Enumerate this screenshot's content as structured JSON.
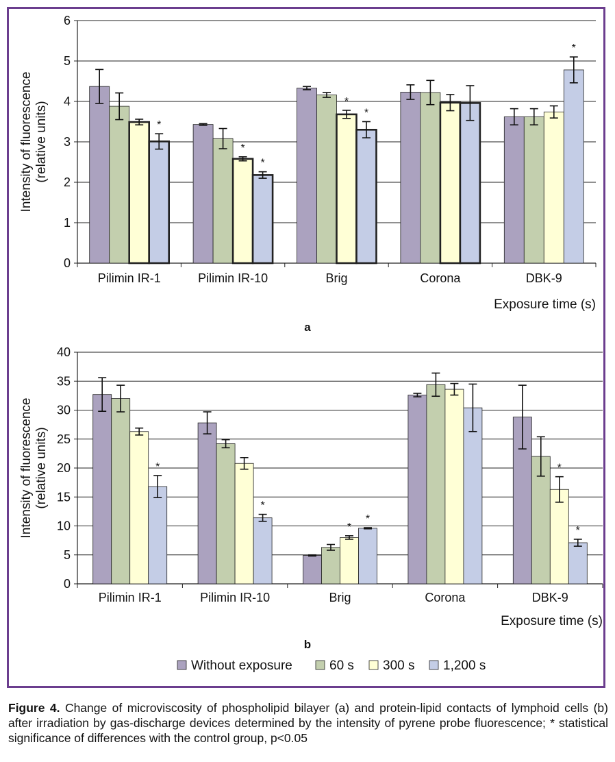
{
  "legend": [
    {
      "label": "Without exposure",
      "color": "#aba2bf"
    },
    {
      "label": "60 s",
      "color": "#c3cfae"
    },
    {
      "label": "300 s",
      "color": "#ffffd6"
    },
    {
      "label": "1,200 s",
      "color": "#c4cde6"
    }
  ],
  "caption": {
    "figure_label": "Figure 4.",
    "text": "Change of microviscosity of phospholipid bilayer (a) and protein-lipid contacts of lymphoid cells (b) after irradiation by gas-discharge devices determined by the intensity of pyrene probe fluorescence; * statistical significance of differences with the control group, p<0.05"
  },
  "chart_data": [
    {
      "type": "bar",
      "panel_label": "a",
      "ylabel_line1": "Intensity of fluorescence",
      "ylabel_line2": "(relative units)",
      "xlabel": "Exposure time (s)",
      "ylim": [
        0,
        6
      ],
      "yticks": [
        0,
        1,
        2,
        3,
        4,
        5,
        6
      ],
      "grid": true,
      "categories": [
        "Pilimin IR-1",
        "Pilimin IR-10",
        "Brig",
        "Corona",
        "DBK-9"
      ],
      "series": [
        {
          "name": "Without exposure",
          "values": [
            4.37,
            3.43,
            4.33,
            4.23,
            3.62
          ],
          "errors": [
            0.42,
            0.02,
            0.04,
            0.18,
            0.2
          ]
        },
        {
          "name": "60 s",
          "values": [
            3.88,
            3.08,
            4.16,
            4.22,
            3.62
          ],
          "errors": [
            0.33,
            0.25,
            0.06,
            0.3,
            0.2
          ]
        },
        {
          "name": "300 s",
          "values": [
            3.49,
            2.58,
            3.68,
            3.97,
            3.74
          ],
          "errors": [
            0.07,
            0.05,
            0.1,
            0.2,
            0.15
          ]
        },
        {
          "name": "1,200 s",
          "values": [
            3.01,
            2.18,
            3.3,
            3.96,
            4.78
          ],
          "errors": [
            0.19,
            0.08,
            0.2,
            0.43,
            0.32
          ]
        }
      ],
      "significant": [
        [
          0,
          3
        ],
        [
          1,
          2
        ],
        [
          1,
          3
        ],
        [
          2,
          2
        ],
        [
          2,
          3
        ],
        [
          4,
          3
        ]
      ],
      "marker": "*"
    },
    {
      "type": "bar",
      "panel_label": "b",
      "ylabel_line1": "Intensity of fluorescence",
      "ylabel_line2": "(relative units)",
      "xlabel": "Exposure time (s)",
      "ylim": [
        0,
        40
      ],
      "yticks": [
        0,
        5,
        10,
        15,
        20,
        25,
        30,
        35,
        40
      ],
      "grid": true,
      "categories": [
        "Pilimin IR-1",
        "Pilimin IR-10",
        "Brig",
        "Corona",
        "DBK-9"
      ],
      "series": [
        {
          "name": "Without exposure",
          "values": [
            32.7,
            27.8,
            4.9,
            32.6,
            28.8
          ],
          "errors": [
            2.9,
            1.9,
            0.1,
            0.3,
            5.5
          ]
        },
        {
          "name": "60 s",
          "values": [
            32.0,
            24.2,
            6.3,
            34.4,
            22.0
          ],
          "errors": [
            2.3,
            0.7,
            0.5,
            2.0,
            3.4
          ]
        },
        {
          "name": "300 s",
          "values": [
            26.3,
            20.8,
            8.0,
            33.6,
            16.3
          ],
          "errors": [
            0.6,
            1.0,
            0.3,
            1.0,
            2.2
          ]
        },
        {
          "name": "1,200 s",
          "values": [
            16.8,
            11.4,
            9.6,
            30.4,
            7.1
          ],
          "errors": [
            1.9,
            0.6,
            0.1,
            4.1,
            0.6
          ]
        }
      ],
      "significant": [
        [
          0,
          3
        ],
        [
          1,
          3
        ],
        [
          2,
          2
        ],
        [
          2,
          3
        ],
        [
          4,
          2
        ],
        [
          4,
          3
        ]
      ],
      "marker": "*"
    }
  ]
}
